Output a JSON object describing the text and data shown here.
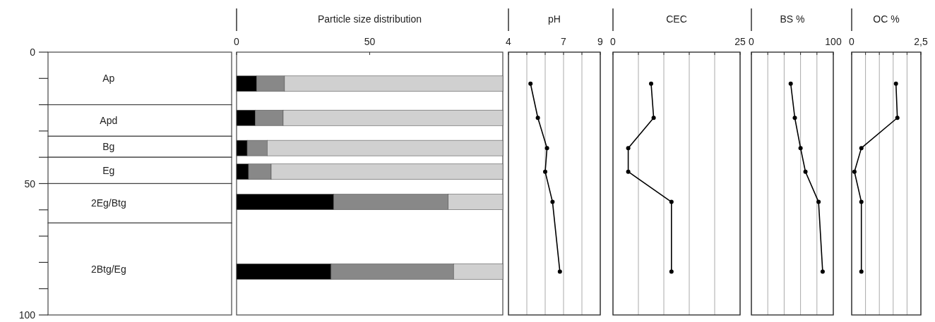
{
  "chart_data": [
    {
      "type": "bar",
      "stacked": true,
      "categories": [
        null
      ],
      "ylim": [
        100,
        0
      ],
      "yticks": [
        0,
        {
          "value": 10,
          "label": null
        },
        {
          "value": 20,
          "label": null
        },
        {
          "value": 30,
          "label": null
        },
        {
          "value": 40,
          "label": null
        },
        50,
        {
          "value": 60,
          "label": null
        },
        {
          "value": 70,
          "label": null
        },
        {
          "value": 80,
          "label": null
        },
        {
          "value": 90,
          "label": null
        },
        100
      ],
      "tick_labels": "y",
      "series": [
        {
          "name": "Ap",
          "color": "#ffffff",
          "values": [
            20
          ]
        },
        {
          "name": "Apd",
          "color": "#ffffff",
          "values": [
            12
          ]
        },
        {
          "name": "Bg",
          "color": "#ffffff",
          "values": [
            8
          ]
        },
        {
          "name": "Eg",
          "color": "#ffffff",
          "values": [
            10
          ]
        },
        {
          "name": "2Eg/Btg",
          "color": "#ffffff",
          "values": [
            15
          ]
        },
        {
          "name": "2Btg/Eg",
          "color": "#ffffff",
          "values": [
            35
          ]
        }
      ]
    },
    {
      "type": "bar",
      "title": "Particle size distribution",
      "orientation": "horizontal",
      "stacked": true,
      "x": [
        12,
        25,
        36.5,
        45.5,
        57,
        83.5
      ],
      "ylim": [
        100,
        0
      ],
      "xlim": [
        0,
        100
      ],
      "xticks": [
        0,
        50
      ],
      "tick_labels": "x",
      "series": [
        {
          "color": "#000000",
          "values": [
            7.5,
            7,
            4,
            4.5,
            36.5,
            35.5
          ]
        },
        {
          "color": "#888888",
          "values": [
            10.5,
            10.5,
            7.5,
            8.5,
            43,
            46
          ]
        },
        {
          "color": "#d0d0d0",
          "values": [
            82,
            82.5,
            88.5,
            87,
            20.5,
            18.5
          ]
        }
      ]
    },
    {
      "type": "line",
      "title": "pH",
      "xlim": [
        4,
        9
      ],
      "xticks": [
        4,
        {
          "value": 5,
          "label": null
        },
        {
          "value": 6,
          "label": null
        },
        7,
        {
          "value": 8,
          "label": null
        },
        9
      ],
      "ylim": [
        100,
        0
      ],
      "grid": "x",
      "marker": "circle",
      "tick_labels": "x",
      "series": [
        {
          "color": "#000000",
          "x": [
            5.2,
            5.6,
            6.1,
            6.0,
            6.4,
            6.8
          ],
          "values": [
            12,
            25,
            36.5,
            45.5,
            57,
            83.5
          ]
        }
      ]
    },
    {
      "type": "line",
      "title": "CEC",
      "xlim": [
        0,
        25
      ],
      "xticks": [
        0,
        {
          "value": 5,
          "label": null
        },
        {
          "value": 10,
          "label": null
        },
        {
          "value": 15,
          "label": null
        },
        {
          "value": 20,
          "label": null
        },
        25
      ],
      "ylim": [
        100,
        0
      ],
      "grid": "x",
      "marker": "circle",
      "tick_labels": "x",
      "series": [
        {
          "color": "#000000",
          "x": [
            7.5,
            8,
            3,
            3,
            11.5,
            11.5
          ],
          "values": [
            12,
            25,
            36.5,
            45.5,
            57,
            83.5
          ]
        }
      ]
    },
    {
      "type": "line",
      "title": "BS %",
      "xlim": [
        0,
        100
      ],
      "xticks": [
        0,
        {
          "value": 20,
          "label": null
        },
        {
          "value": 40,
          "label": null
        },
        {
          "value": 60,
          "label": null
        },
        {
          "value": 80,
          "label": null
        },
        100
      ],
      "ylim": [
        100,
        0
      ],
      "grid": "x",
      "marker": "circle",
      "tick_labels": "x",
      "series": [
        {
          "color": "#000000",
          "x": [
            48,
            53,
            60,
            66,
            82,
            87
          ],
          "values": [
            12,
            25,
            36.5,
            45.5,
            57,
            83.5
          ]
        }
      ]
    },
    {
      "type": "line",
      "title": "OC %",
      "xlim": [
        0,
        2.5
      ],
      "xticks": [
        0,
        {
          "value": 0.5,
          "label": null
        },
        {
          "value": 1,
          "label": null
        },
        {
          "value": 1.5,
          "label": null
        },
        {
          "value": 2,
          "label": null
        },
        {
          "value": 2.5,
          "label": "2,5"
        }
      ],
      "ylim": [
        100,
        0
      ],
      "grid": "x",
      "marker": "circle",
      "tick_labels": "x",
      "series": [
        {
          "color": "#000000",
          "x": [
            1.6,
            1.65,
            0.35,
            0.1,
            0.35,
            0.35
          ],
          "values": [
            12,
            25,
            36.5,
            45.5,
            57,
            83.5
          ]
        }
      ]
    }
  ]
}
